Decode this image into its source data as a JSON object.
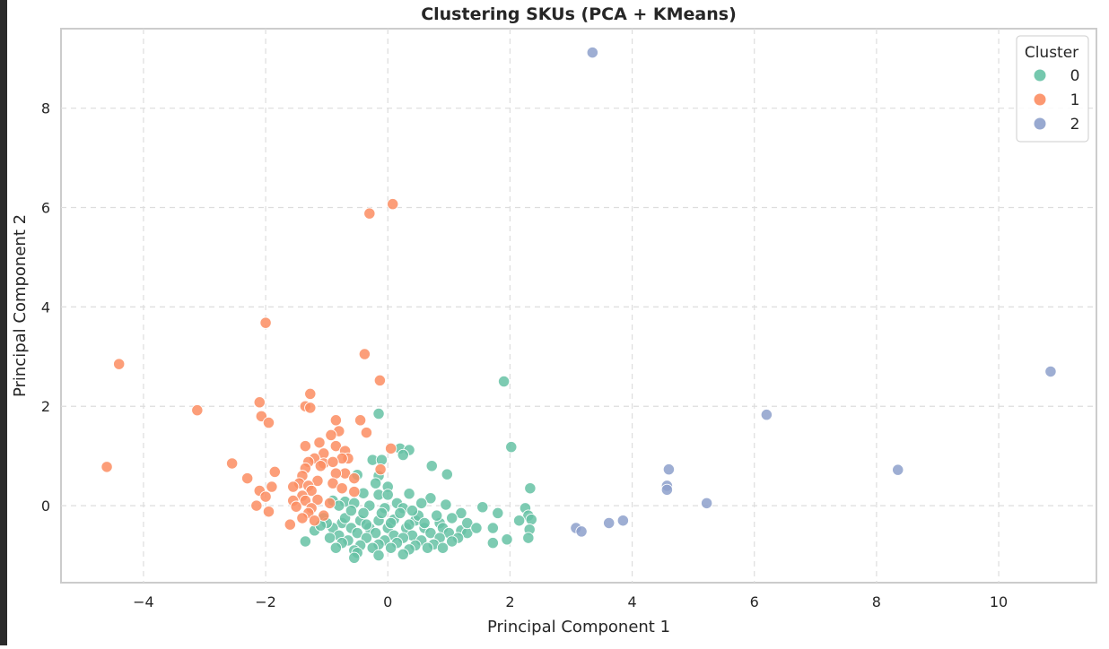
{
  "chart_data": {
    "type": "scatter",
    "title": "Clustering SKUs (PCA + KMeans)",
    "xlabel": "Principal Component 1",
    "ylabel": "Principal Component 2",
    "xlim": [
      -5.35,
      11.6
    ],
    "ylim": [
      -1.55,
      9.6
    ],
    "xticks": [
      -4,
      -2,
      0,
      2,
      4,
      6,
      8,
      10
    ],
    "yticks": [
      0,
      2,
      4,
      6,
      8
    ],
    "xtick_labels": [
      "−4",
      "−2",
      "0",
      "2",
      "4",
      "6",
      "8",
      "10"
    ],
    "ytick_labels": [
      "0",
      "2",
      "4",
      "6",
      "8"
    ],
    "grid": true,
    "legend": {
      "title": "Cluster",
      "placement": "top-right"
    },
    "series": [
      {
        "name": "0",
        "color": "#66c2a5",
        "points": [
          [
            1.9,
            2.5
          ],
          [
            -0.15,
            1.85
          ],
          [
            0.2,
            1.15
          ],
          [
            0.35,
            1.12
          ],
          [
            2.02,
            1.18
          ],
          [
            0.25,
            1.02
          ],
          [
            0.72,
            0.8
          ],
          [
            0.97,
            0.63
          ],
          [
            2.33,
            0.35
          ],
          [
            -0.25,
            0.92
          ],
          [
            -0.1,
            0.92
          ],
          [
            -0.5,
            0.62
          ],
          [
            -0.15,
            0.6
          ],
          [
            -0.2,
            0.45
          ],
          [
            0.0,
            0.38
          ],
          [
            -0.4,
            0.25
          ],
          [
            -0.15,
            0.22
          ],
          [
            0.0,
            0.22
          ],
          [
            0.35,
            0.24
          ],
          [
            0.7,
            0.15
          ],
          [
            1.55,
            -0.03
          ],
          [
            0.95,
            0.02
          ],
          [
            -0.9,
            0.1
          ],
          [
            -0.7,
            0.08
          ],
          [
            -0.55,
            0.05
          ],
          [
            -0.3,
            0.0
          ],
          [
            0.15,
            0.05
          ],
          [
            0.55,
            0.05
          ],
          [
            0.25,
            -0.05
          ],
          [
            -0.05,
            -0.05
          ],
          [
            2.25,
            -0.05
          ],
          [
            1.8,
            -0.15
          ],
          [
            2.3,
            -0.2
          ],
          [
            1.2,
            -0.15
          ],
          [
            2.35,
            -0.28
          ],
          [
            2.15,
            -0.3
          ],
          [
            -1.05,
            -0.25
          ],
          [
            -0.75,
            -0.35
          ],
          [
            -0.45,
            -0.3
          ],
          [
            -0.15,
            -0.3
          ],
          [
            0.1,
            -0.28
          ],
          [
            0.45,
            -0.3
          ],
          [
            0.85,
            -0.35
          ],
          [
            -0.9,
            -0.45
          ],
          [
            -0.6,
            -0.45
          ],
          [
            -0.3,
            -0.45
          ],
          [
            0.0,
            -0.45
          ],
          [
            0.3,
            -0.45
          ],
          [
            0.6,
            -0.45
          ],
          [
            0.9,
            -0.45
          ],
          [
            1.2,
            -0.5
          ],
          [
            1.72,
            -0.45
          ],
          [
            2.32,
            -0.48
          ],
          [
            -1.2,
            -0.5
          ],
          [
            -0.8,
            -0.6
          ],
          [
            -0.5,
            -0.55
          ],
          [
            -0.2,
            -0.55
          ],
          [
            0.1,
            -0.6
          ],
          [
            0.4,
            -0.6
          ],
          [
            0.7,
            -0.55
          ],
          [
            1.0,
            -0.55
          ],
          [
            1.3,
            -0.55
          ],
          [
            -0.95,
            -0.65
          ],
          [
            -0.65,
            -0.7
          ],
          [
            -0.35,
            -0.65
          ],
          [
            -0.05,
            -0.7
          ],
          [
            0.25,
            -0.65
          ],
          [
            0.55,
            -0.7
          ],
          [
            0.85,
            -0.65
          ],
          [
            1.15,
            -0.65
          ],
          [
            1.95,
            -0.68
          ],
          [
            2.3,
            -0.65
          ],
          [
            -1.35,
            -0.72
          ],
          [
            -0.75,
            -0.75
          ],
          [
            -0.45,
            -0.8
          ],
          [
            -0.15,
            -0.78
          ],
          [
            0.15,
            -0.75
          ],
          [
            0.45,
            -0.8
          ],
          [
            0.75,
            -0.78
          ],
          [
            1.05,
            -0.72
          ],
          [
            1.72,
            -0.75
          ],
          [
            -0.85,
            -0.85
          ],
          [
            -0.55,
            -0.9
          ],
          [
            -0.25,
            -0.85
          ],
          [
            0.05,
            -0.85
          ],
          [
            0.35,
            -0.88
          ],
          [
            0.65,
            -0.85
          ],
          [
            0.9,
            -0.85
          ],
          [
            -0.5,
            -0.95
          ],
          [
            -0.15,
            -1.0
          ],
          [
            0.25,
            -0.98
          ],
          [
            -0.55,
            -1.05
          ],
          [
            -0.7,
            -0.25
          ],
          [
            -0.4,
            -0.15
          ],
          [
            -0.1,
            -0.15
          ],
          [
            0.2,
            -0.15
          ],
          [
            0.5,
            -0.2
          ],
          [
            0.8,
            -0.2
          ],
          [
            1.05,
            -0.25
          ],
          [
            -0.6,
            -0.1
          ],
          [
            0.05,
            -0.35
          ],
          [
            0.6,
            -0.35
          ],
          [
            1.3,
            -0.35
          ],
          [
            -1.0,
            -0.35
          ],
          [
            -0.35,
            -0.38
          ],
          [
            0.35,
            -0.38
          ],
          [
            -0.8,
            0.0
          ],
          [
            0.4,
            -0.1
          ],
          [
            1.45,
            -0.45
          ],
          [
            -1.1,
            -0.4
          ]
        ]
      },
      {
        "name": "1",
        "color": "#fc8d62",
        "points": [
          [
            0.08,
            6.07
          ],
          [
            -0.3,
            5.88
          ],
          [
            -2.0,
            3.68
          ],
          [
            -4.4,
            2.85
          ],
          [
            -0.38,
            3.05
          ],
          [
            -0.13,
            2.52
          ],
          [
            -1.27,
            2.25
          ],
          [
            -2.1,
            2.08
          ],
          [
            -1.35,
            2.0
          ],
          [
            -1.27,
            1.97
          ],
          [
            -3.12,
            1.92
          ],
          [
            -2.07,
            1.8
          ],
          [
            -0.85,
            1.72
          ],
          [
            -0.45,
            1.72
          ],
          [
            -1.95,
            1.67
          ],
          [
            -0.8,
            1.5
          ],
          [
            -0.35,
            1.47
          ],
          [
            -0.93,
            1.42
          ],
          [
            -1.12,
            1.27
          ],
          [
            -0.85,
            1.2
          ],
          [
            -1.35,
            1.2
          ],
          [
            -0.7,
            1.1
          ],
          [
            -1.05,
            1.05
          ],
          [
            0.05,
            1.15
          ],
          [
            -1.2,
            0.95
          ],
          [
            -0.65,
            0.95
          ],
          [
            -0.75,
            0.95
          ],
          [
            -1.3,
            0.88
          ],
          [
            -1.05,
            0.85
          ],
          [
            -0.9,
            0.88
          ],
          [
            -1.1,
            0.8
          ],
          [
            -2.55,
            0.85
          ],
          [
            -4.6,
            0.78
          ],
          [
            -1.35,
            0.75
          ],
          [
            -0.12,
            0.73
          ],
          [
            -1.85,
            0.68
          ],
          [
            -0.7,
            0.65
          ],
          [
            -0.85,
            0.65
          ],
          [
            -1.4,
            0.6
          ],
          [
            -0.55,
            0.55
          ],
          [
            -2.3,
            0.55
          ],
          [
            -1.15,
            0.5
          ],
          [
            -0.9,
            0.45
          ],
          [
            -1.45,
            0.45
          ],
          [
            -1.3,
            0.4
          ],
          [
            -1.9,
            0.38
          ],
          [
            -1.55,
            0.38
          ],
          [
            -0.75,
            0.35
          ],
          [
            -2.1,
            0.3
          ],
          [
            -1.25,
            0.3
          ],
          [
            -0.55,
            0.28
          ],
          [
            -1.4,
            0.2
          ],
          [
            -2.0,
            0.18
          ],
          [
            -1.15,
            0.12
          ],
          [
            -1.55,
            0.1
          ],
          [
            -1.35,
            0.1
          ],
          [
            -0.95,
            0.05
          ],
          [
            -2.15,
            0.0
          ],
          [
            -1.5,
            -0.02
          ],
          [
            -1.25,
            -0.05
          ],
          [
            -1.95,
            -0.12
          ],
          [
            -1.3,
            -0.15
          ],
          [
            -1.05,
            -0.2
          ],
          [
            -1.6,
            -0.38
          ],
          [
            -1.2,
            -0.3
          ],
          [
            -1.4,
            -0.25
          ]
        ]
      },
      {
        "name": "2",
        "color": "#8da0cb",
        "points": [
          [
            3.35,
            9.12
          ],
          [
            10.85,
            2.7
          ],
          [
            6.2,
            1.83
          ],
          [
            8.35,
            0.72
          ],
          [
            4.6,
            0.73
          ],
          [
            4.57,
            0.4
          ],
          [
            4.57,
            0.32
          ],
          [
            5.22,
            0.05
          ],
          [
            3.62,
            -0.35
          ],
          [
            3.85,
            -0.3
          ],
          [
            3.08,
            -0.45
          ],
          [
            3.17,
            -0.52
          ]
        ]
      }
    ]
  }
}
